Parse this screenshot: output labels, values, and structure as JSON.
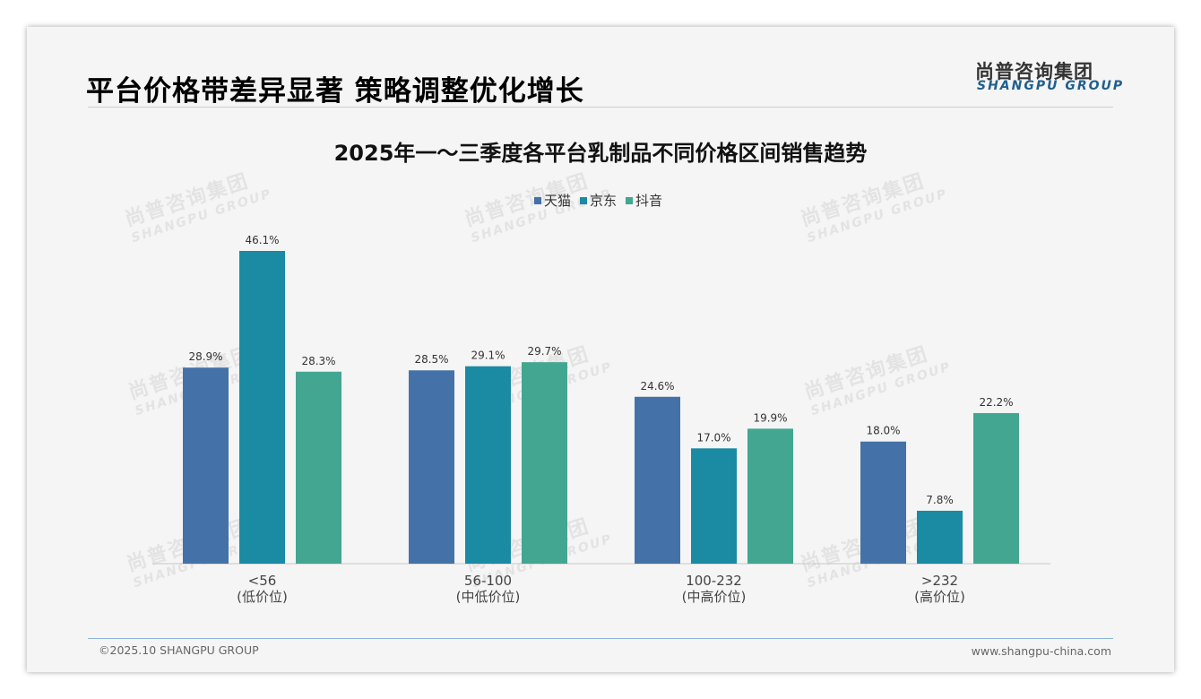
{
  "page": {
    "title": "平台价格带差异显著 策略调整优化增长",
    "logo_cn": "尚普咨询集团",
    "logo_en": "SHANGPU GROUP",
    "footer_left": "©2025.10 SHANGPU GROUP",
    "footer_right": "www.shangpu-china.com"
  },
  "watermark": {
    "cn": "尚普咨询集团",
    "en": "SHANGPU GROUP"
  },
  "chart_data": {
    "type": "bar",
    "title": "2025年一～三季度各平台乳制品不同价格区间销售趋势",
    "categories": [
      "<56",
      "56-100",
      "100-232",
      ">232"
    ],
    "category_sublabels": [
      "(低价位)",
      "(中低价位)",
      "(中高价位)",
      "(高价位)"
    ],
    "series": [
      {
        "name": "天猫",
        "color": "#4472a8",
        "values": [
          28.9,
          28.5,
          24.6,
          18.0
        ]
      },
      {
        "name": "京东",
        "color": "#1b8aa3",
        "values": [
          46.1,
          29.1,
          17.0,
          7.8
        ]
      },
      {
        "name": "抖音",
        "color": "#43a691",
        "values": [
          28.3,
          29.7,
          19.9,
          22.2
        ]
      }
    ],
    "value_labels": [
      [
        "28.9%",
        "28.5%",
        "24.6%",
        "18.0%"
      ],
      [
        "46.1%",
        "29.1%",
        "17.0%",
        "7.8%"
      ],
      [
        "28.3%",
        "29.7%",
        "19.9%",
        "22.2%"
      ]
    ],
    "ylim": [
      0,
      50
    ],
    "legend_position": "top-center",
    "grid": false
  }
}
